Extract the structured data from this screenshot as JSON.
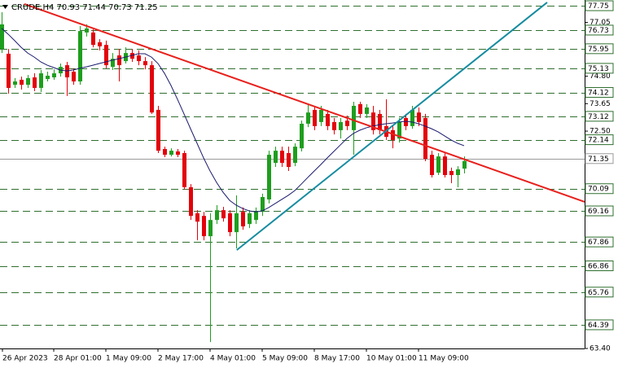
{
  "chart_data": {
    "type": "candlestick",
    "title": "CRUDE,H4 70.93 71.44 70.73 71.25",
    "categories": [
      "26 Apr 2023",
      null,
      null,
      null,
      null,
      null,
      null,
      null,
      "28 Apr 01:00",
      null,
      null,
      null,
      null,
      null,
      null,
      null,
      "1 May 09:00",
      null,
      null,
      null,
      null,
      null,
      null,
      null,
      "2 May 17:00",
      null,
      null,
      null,
      null,
      null,
      null,
      null,
      "4 May 01:00",
      null,
      null,
      null,
      null,
      null,
      null,
      null,
      "5 May 09:00",
      null,
      null,
      null,
      null,
      null,
      null,
      null,
      "8 May 17:00",
      null,
      null,
      null,
      null,
      null,
      null,
      null,
      "10 May 01:00",
      null,
      null,
      null,
      null,
      null,
      null,
      null,
      "11 May 09:00",
      null,
      null,
      null,
      null,
      null,
      null,
      null
    ],
    "open": [
      75.94,
      75.74,
      74.44,
      74.65,
      74.44,
      74.75,
      74.31,
      74.68,
      74.75,
      74.92,
      75.26,
      74.99,
      74.58,
      76.63,
      76.63,
      76.22,
      76.11,
      75.19,
      75.67,
      75.43,
      75.77,
      75.67,
      75.43,
      75.26,
      73.39,
      71.75,
      71.51,
      71.65,
      71.58,
      70.15,
      69.06,
      68.95,
      68.1,
      68.78,
      69.19,
      69.06,
      68.27,
      69.12,
      68.61,
      68.78,
      69.12,
      69.64,
      71.17,
      71.68,
      71.58,
      71.17,
      71.78,
      72.81,
      73.39,
      72.88,
      73.22,
      72.88,
      72.54,
      72.94,
      72.54,
      73.63,
      73.22,
      73.28,
      73.22,
      72.71,
      72.54,
      72.19,
      73.05,
      72.71,
      73.28,
      73.05,
      71.51,
      70.76,
      71.44,
      70.83,
      70.66,
      70.93
    ],
    "high": [
      77.48,
      75.94,
      74.72,
      74.78,
      74.85,
      74.92,
      75.06,
      74.99,
      75.09,
      75.33,
      75.4,
      75.13,
      76.9,
      76.97,
      76.76,
      76.35,
      76.29,
      75.77,
      75.94,
      76.01,
      75.94,
      75.88,
      75.6,
      75.43,
      73.56,
      71.85,
      71.78,
      71.75,
      71.68,
      70.28,
      69.19,
      69.12,
      69.06,
      69.4,
      69.33,
      69.19,
      69.81,
      69.3,
      69.19,
      69.3,
      69.88,
      71.68,
      71.85,
      71.85,
      71.85,
      71.99,
      72.94,
      73.63,
      73.56,
      73.56,
      73.39,
      73.05,
      73.05,
      73.15,
      73.73,
      73.73,
      73.63,
      73.56,
      73.39,
      73.83,
      72.71,
      73.05,
      73.22,
      73.56,
      73.49,
      73.22,
      71.68,
      71.58,
      71.58,
      70.97,
      71.03,
      71.44
    ],
    "low": [
      75.77,
      74.07,
      74.31,
      74.24,
      74.31,
      74.17,
      74.14,
      74.58,
      74.65,
      74.78,
      73.97,
      74.44,
      74.44,
      76.46,
      76.01,
      75.88,
      75.13,
      75.06,
      74.58,
      75.33,
      75.4,
      75.26,
      75.09,
      73.22,
      71.58,
      71.41,
      71.44,
      71.41,
      70.05,
      68.78,
      67.93,
      67.93,
      63.67,
      68.61,
      68.71,
      68.1,
      67.59,
      68.37,
      68.44,
      68.61,
      68.95,
      69.47,
      71.0,
      71.0,
      70.83,
      71.03,
      71.65,
      72.67,
      72.54,
      72.71,
      72.54,
      72.36,
      72.19,
      72.54,
      71.51,
      73.05,
      73.05,
      72.36,
      72.36,
      72.13,
      71.78,
      72.02,
      72.54,
      72.6,
      72.71,
      71.24,
      70.56,
      70.66,
      70.56,
      70.32,
      70.15,
      70.73
    ],
    "close": [
      76.97,
      74.31,
      74.58,
      74.44,
      74.72,
      74.31,
      74.92,
      74.82,
      74.92,
      75.19,
      74.75,
      74.58,
      76.69,
      76.8,
      76.11,
      76.05,
      75.26,
      75.53,
      75.26,
      75.77,
      75.53,
      75.43,
      75.26,
      73.28,
      71.68,
      71.51,
      71.68,
      71.51,
      70.15,
      68.95,
      68.71,
      68.1,
      68.78,
      69.19,
      68.85,
      68.27,
      69.06,
      68.51,
      69.06,
      69.12,
      69.74,
      71.51,
      71.68,
      71.17,
      71.0,
      71.85,
      72.81,
      73.28,
      72.71,
      73.39,
      72.71,
      72.54,
      72.88,
      72.71,
      73.56,
      73.22,
      73.49,
      72.54,
      72.54,
      72.26,
      72.13,
      72.88,
      72.71,
      73.39,
      72.88,
      71.34,
      70.66,
      71.44,
      70.66,
      70.66,
      70.9,
      71.25
    ],
    "up_color": "#1e9e1e",
    "down_color": "#e3000b",
    "ma": {
      "color": "#1a1a6e",
      "values": [
        76.8,
        76.56,
        76.29,
        76.01,
        75.77,
        75.6,
        75.4,
        75.26,
        75.16,
        75.06,
        75.02,
        75.06,
        75.13,
        75.19,
        75.26,
        75.33,
        75.4,
        75.47,
        75.53,
        75.6,
        75.67,
        75.74,
        75.74,
        75.6,
        75.33,
        74.92,
        74.41,
        73.83,
        73.22,
        72.6,
        71.99,
        71.38,
        70.83,
        70.35,
        69.94,
        69.6,
        69.4,
        69.26,
        69.16,
        69.12,
        69.16,
        69.3,
        69.47,
        69.64,
        69.81,
        70.01,
        70.28,
        70.56,
        70.83,
        71.1,
        71.38,
        71.65,
        71.92,
        72.19,
        72.4,
        72.54,
        72.64,
        72.71,
        72.77,
        72.81,
        72.84,
        72.88,
        72.91,
        72.88,
        72.81,
        72.71,
        72.6,
        72.47,
        72.3,
        72.13,
        71.99,
        71.89
      ]
    },
    "trendlines": [
      {
        "color": "#e8201c",
        "points": [
          [
            3.5,
            77.82
          ],
          [
            89.5,
            69.54
          ]
        ]
      },
      {
        "color": "#168ca0",
        "points": [
          [
            36.1,
            67.52
          ],
          [
            83.75,
            77.89
          ]
        ]
      }
    ],
    "levels": [
      77.75,
      76.73,
      75.95,
      75.13,
      74.12,
      73.12,
      72.14,
      70.09,
      69.16,
      67.86,
      66.86,
      65.76,
      64.39
    ],
    "level_color": "#2f6f2f",
    "price_line": 71.35,
    "price_line_color": "#9a9a9a",
    "ylim": [
      63.4,
      77.99
    ],
    "yticks": [
      77.05,
      {
        "value": 74.8,
        "label": "74.80"
      },
      73.65,
      {
        "value": 72.5,
        "label": "72.50"
      },
      {
        "value": 63.4,
        "label": "63.40"
      }
    ]
  }
}
